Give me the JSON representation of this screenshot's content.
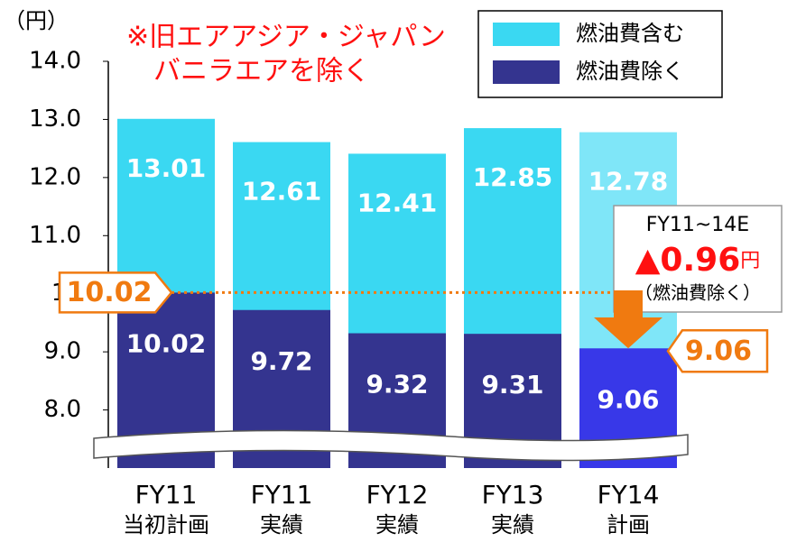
{
  "chart_data": {
    "type": "bar",
    "unit": "（円）",
    "note": [
      "※旧エアアジア・ジャパン",
      "バニラエアを除く"
    ],
    "categories": [
      [
        "FY11",
        "当初計画"
      ],
      [
        "FY11",
        "実績"
      ],
      [
        "FY12",
        "実績"
      ],
      [
        "FY13",
        "実績"
      ],
      [
        "FY14",
        "計画"
      ]
    ],
    "series": [
      {
        "name": "燃油費含む",
        "color": "#3ad8f2",
        "plan_color": "#7fe6f8",
        "values": [
          13.01,
          12.61,
          12.41,
          12.85,
          12.78
        ]
      },
      {
        "name": "燃油費除く",
        "color": "#34348f",
        "plan_color": "#3838e8",
        "values": [
          10.02,
          9.72,
          9.32,
          9.31,
          9.06
        ]
      }
    ],
    "ylim": [
      7,
      14
    ],
    "yticks": [
      {
        "value": 8,
        "label": "8.0"
      },
      {
        "value": 9,
        "label": "9.0"
      },
      10,
      {
        "value": 11,
        "label": "11.0"
      },
      {
        "value": 12,
        "label": "12.0"
      },
      {
        "value": 13,
        "label": "13.0"
      },
      {
        "value": 14,
        "label": "14.0"
      }
    ],
    "annotations": {
      "start_value": 10.02,
      "end_value": 9.06,
      "change_label": "FY11~14E",
      "change_prefix": "▲",
      "change_value": 0.96,
      "change_unit": "円",
      "change_note": "（燃油費除く）"
    }
  }
}
